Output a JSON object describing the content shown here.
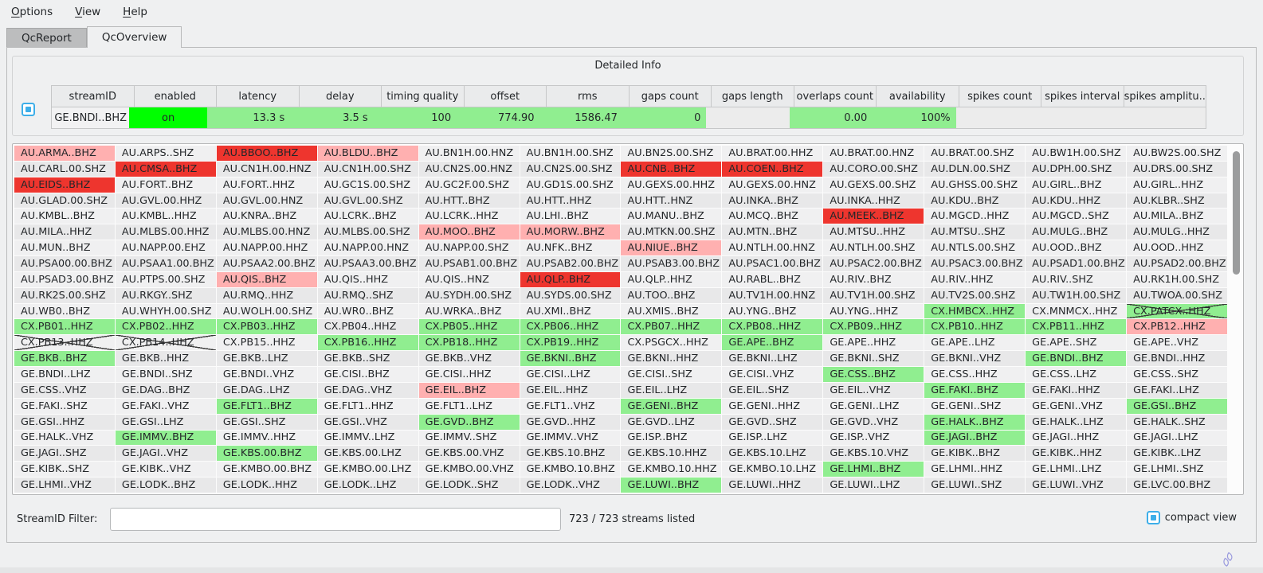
{
  "menu_bar": {
    "items": [
      {
        "label": "Options",
        "mnemonic": "O"
      },
      {
        "label": "View",
        "mnemonic": "V"
      },
      {
        "label": "Help",
        "mnemonic": "H"
      }
    ]
  },
  "tabs": [
    {
      "label": "QcReport",
      "active": false
    },
    {
      "label": "QcOverview",
      "active": true
    }
  ],
  "detailed_info": {
    "title": "Detailed Info",
    "columns": [
      "streamID",
      "enabled",
      "latency",
      "delay",
      "timing quality",
      "offset",
      "rms",
      "gaps count",
      "gaps length",
      "overlaps count",
      "availability",
      "spikes count",
      "spikes interval",
      "spikes amplitu.."
    ],
    "row": [
      [
        "GE.BNDI..BHZ",
        "id"
      ],
      [
        "on",
        "on"
      ],
      [
        "13.3 s",
        "lg"
      ],
      [
        "3.5 s",
        "lg"
      ],
      [
        "100",
        "lg"
      ],
      [
        "774.90",
        "lg"
      ],
      [
        "1586.47",
        "lg"
      ],
      [
        "0",
        "lg"
      ],
      [
        "",
        ""
      ],
      [
        "0.00",
        "lg"
      ],
      [
        "100%",
        "lg"
      ],
      [
        "",
        ""
      ],
      [
        "",
        ""
      ],
      [
        "",
        ""
      ]
    ]
  },
  "grid": {
    "state_legend": {
      "": "normal",
      "p": "warn-pink",
      "r": "alert-red",
      "g": "ok-green",
      "x": "disabled-crossed",
      "gx": "ok-green-crossed"
    },
    "rows": [
      [
        [
          "AU.ARMA..BHZ",
          "p"
        ],
        [
          "AU.ARPS..SHZ",
          ""
        ],
        [
          "AU.BBOO..BHZ",
          "r"
        ],
        [
          "AU.BLDU..BHZ",
          "p"
        ],
        [
          "AU.BN1H.00.HNZ",
          ""
        ],
        [
          "AU.BN1H.00.SHZ",
          ""
        ],
        [
          "AU.BN2S.00.SHZ",
          ""
        ],
        [
          "AU.BRAT.00.HHZ",
          ""
        ],
        [
          "AU.BRAT.00.HNZ",
          ""
        ],
        [
          "AU.BRAT.00.SHZ",
          ""
        ],
        [
          "AU.BW1H.00.SHZ",
          ""
        ],
        [
          "AU.BW2S.00.SHZ",
          ""
        ]
      ],
      [
        [
          "AU.CARL.00.SHZ",
          ""
        ],
        [
          "AU.CMSA..BHZ",
          "r"
        ],
        [
          "AU.CN1H.00.HNZ",
          ""
        ],
        [
          "AU.CN1H.00.SHZ",
          ""
        ],
        [
          "AU.CN2S.00.HNZ",
          ""
        ],
        [
          "AU.CN2S.00.SHZ",
          ""
        ],
        [
          "AU.CNB..BHZ",
          "r"
        ],
        [
          "AU.COEN..BHZ",
          "r"
        ],
        [
          "AU.CORO.00.SHZ",
          ""
        ],
        [
          "AU.DLN.00.SHZ",
          ""
        ],
        [
          "AU.DPH.00.SHZ",
          ""
        ],
        [
          "AU.DRS.00.SHZ",
          ""
        ]
      ],
      [
        [
          "AU.EIDS..BHZ",
          "r"
        ],
        [
          "AU.FORT..BHZ",
          ""
        ],
        [
          "AU.FORT..HHZ",
          ""
        ],
        [
          "AU.GC1S.00.SHZ",
          ""
        ],
        [
          "AU.GC2F.00.SHZ",
          ""
        ],
        [
          "AU.GD1S.00.SHZ",
          ""
        ],
        [
          "AU.GEXS.00.HHZ",
          ""
        ],
        [
          "AU.GEXS.00.HNZ",
          ""
        ],
        [
          "AU.GEXS.00.SHZ",
          ""
        ],
        [
          "AU.GHSS.00.SHZ",
          ""
        ],
        [
          "AU.GIRL..BHZ",
          ""
        ],
        [
          "AU.GIRL..HHZ",
          ""
        ]
      ],
      [
        [
          "AU.GLAD.00.SHZ",
          ""
        ],
        [
          "AU.GVL.00.HHZ",
          ""
        ],
        [
          "AU.GVL.00.HNZ",
          ""
        ],
        [
          "AU.GVL.00.SHZ",
          ""
        ],
        [
          "AU.HTT..BHZ",
          ""
        ],
        [
          "AU.HTT..HHZ",
          ""
        ],
        [
          "AU.HTT..HNZ",
          ""
        ],
        [
          "AU.INKA..BHZ",
          ""
        ],
        [
          "AU.INKA..HHZ",
          ""
        ],
        [
          "AU.KDU..BHZ",
          ""
        ],
        [
          "AU.KDU..HHZ",
          ""
        ],
        [
          "AU.KLBR..SHZ",
          ""
        ]
      ],
      [
        [
          "AU.KMBL..BHZ",
          ""
        ],
        [
          "AU.KMBL..HHZ",
          ""
        ],
        [
          "AU.KNRA..BHZ",
          ""
        ],
        [
          "AU.LCRK..BHZ",
          ""
        ],
        [
          "AU.LCRK..HHZ",
          ""
        ],
        [
          "AU.LHI..BHZ",
          ""
        ],
        [
          "AU.MANU..BHZ",
          ""
        ],
        [
          "AU.MCQ..BHZ",
          ""
        ],
        [
          "AU.MEEK..BHZ",
          "r"
        ],
        [
          "AU.MGCD..HHZ",
          ""
        ],
        [
          "AU.MGCD..SHZ",
          ""
        ],
        [
          "AU.MILA..BHZ",
          ""
        ]
      ],
      [
        [
          "AU.MILA..HHZ",
          ""
        ],
        [
          "AU.MLBS.00.HHZ",
          ""
        ],
        [
          "AU.MLBS.00.HNZ",
          ""
        ],
        [
          "AU.MLBS.00.SHZ",
          ""
        ],
        [
          "AU.MOO..BHZ",
          "p"
        ],
        [
          "AU.MORW..BHZ",
          "p"
        ],
        [
          "AU.MTKN.00.SHZ",
          ""
        ],
        [
          "AU.MTN..BHZ",
          ""
        ],
        [
          "AU.MTSU..HHZ",
          ""
        ],
        [
          "AU.MTSU..SHZ",
          ""
        ],
        [
          "AU.MULG..BHZ",
          ""
        ],
        [
          "AU.MULG..HHZ",
          ""
        ]
      ],
      [
        [
          "AU.MUN..BHZ",
          ""
        ],
        [
          "AU.NAPP.00.EHZ",
          ""
        ],
        [
          "AU.NAPP.00.HHZ",
          ""
        ],
        [
          "AU.NAPP.00.HNZ",
          ""
        ],
        [
          "AU.NAPP.00.SHZ",
          ""
        ],
        [
          "AU.NFK..BHZ",
          ""
        ],
        [
          "AU.NIUE..BHZ",
          "p"
        ],
        [
          "AU.NTLH.00.HNZ",
          ""
        ],
        [
          "AU.NTLH.00.SHZ",
          ""
        ],
        [
          "AU.NTLS.00.SHZ",
          ""
        ],
        [
          "AU.OOD..BHZ",
          ""
        ],
        [
          "AU.OOD..HHZ",
          ""
        ]
      ],
      [
        [
          "AU.PSA00.00.BHZ",
          ""
        ],
        [
          "AU.PSAA1.00.BHZ",
          ""
        ],
        [
          "AU.PSAA2.00.BHZ",
          ""
        ],
        [
          "AU.PSAA3.00.BHZ",
          ""
        ],
        [
          "AU.PSAB1.00.BHZ",
          ""
        ],
        [
          "AU.PSAB2.00.BHZ",
          ""
        ],
        [
          "AU.PSAB3.00.BHZ",
          ""
        ],
        [
          "AU.PSAC1.00.BHZ",
          ""
        ],
        [
          "AU.PSAC2.00.BHZ",
          ""
        ],
        [
          "AU.PSAC3.00.BHZ",
          ""
        ],
        [
          "AU.PSAD1.00.BHZ",
          ""
        ],
        [
          "AU.PSAD2.00.BHZ",
          ""
        ]
      ],
      [
        [
          "AU.PSAD3.00.BHZ",
          ""
        ],
        [
          "AU.PTPS.00.SHZ",
          ""
        ],
        [
          "AU.QIS..BHZ",
          "p"
        ],
        [
          "AU.QIS..HHZ",
          ""
        ],
        [
          "AU.QIS..HNZ",
          ""
        ],
        [
          "AU.QLP..BHZ",
          "r"
        ],
        [
          "AU.QLP..HHZ",
          ""
        ],
        [
          "AU.RABL..BHZ",
          ""
        ],
        [
          "AU.RIV..BHZ",
          ""
        ],
        [
          "AU.RIV..HHZ",
          ""
        ],
        [
          "AU.RIV..SHZ",
          ""
        ],
        [
          "AU.RK1H.00.SHZ",
          ""
        ]
      ],
      [
        [
          "AU.RK2S.00.SHZ",
          ""
        ],
        [
          "AU.RKGY..SHZ",
          ""
        ],
        [
          "AU.RMQ..HHZ",
          ""
        ],
        [
          "AU.RMQ..SHZ",
          ""
        ],
        [
          "AU.SYDH.00.SHZ",
          ""
        ],
        [
          "AU.SYDS.00.SHZ",
          ""
        ],
        [
          "AU.TOO..BHZ",
          ""
        ],
        [
          "AU.TV1H.00.HNZ",
          ""
        ],
        [
          "AU.TV1H.00.SHZ",
          ""
        ],
        [
          "AU.TV2S.00.SHZ",
          ""
        ],
        [
          "AU.TW1H.00.SHZ",
          ""
        ],
        [
          "AU.TWOA.00.SHZ",
          ""
        ]
      ],
      [
        [
          "AU.WB0..BHZ",
          ""
        ],
        [
          "AU.WHYH.00.SHZ",
          ""
        ],
        [
          "AU.WOLH.00.SHZ",
          ""
        ],
        [
          "AU.WR0..BHZ",
          ""
        ],
        [
          "AU.WRKA..BHZ",
          ""
        ],
        [
          "AU.XMI..BHZ",
          ""
        ],
        [
          "AU.XMIS..BHZ",
          ""
        ],
        [
          "AU.YNG..BHZ",
          ""
        ],
        [
          "AU.YNG..HHZ",
          ""
        ],
        [
          "CX.HMBCX..HHZ",
          "g"
        ],
        [
          "CX.MNMCX..HHZ",
          ""
        ],
        [
          "CX.PATCX..HHZ",
          "gx"
        ]
      ],
      [
        [
          "CX.PB01..HHZ",
          "g"
        ],
        [
          "CX.PB02..HHZ",
          "g"
        ],
        [
          "CX.PB03..HHZ",
          "g"
        ],
        [
          "CX.PB04..HHZ",
          ""
        ],
        [
          "CX.PB05..HHZ",
          "g"
        ],
        [
          "CX.PB06..HHZ",
          "g"
        ],
        [
          "CX.PB07..HHZ",
          "g"
        ],
        [
          "CX.PB08..HHZ",
          "g"
        ],
        [
          "CX.PB09..HHZ",
          "g"
        ],
        [
          "CX.PB10..HHZ",
          "g"
        ],
        [
          "CX.PB11..HHZ",
          "g"
        ],
        [
          "CX.PB12..HHZ",
          "p"
        ]
      ],
      [
        [
          "CX.PB13..HHZ",
          "x"
        ],
        [
          "CX.PB14..HHZ",
          "x"
        ],
        [
          "CX.PB15..HHZ",
          ""
        ],
        [
          "CX.PB16..HHZ",
          "g"
        ],
        [
          "CX.PB18..HHZ",
          "g"
        ],
        [
          "CX.PB19..HHZ",
          "g"
        ],
        [
          "CX.PSGCX..HHZ",
          ""
        ],
        [
          "GE.APE..BHZ",
          "g"
        ],
        [
          "GE.APE..HHZ",
          ""
        ],
        [
          "GE.APE..LHZ",
          ""
        ],
        [
          "GE.APE..SHZ",
          ""
        ],
        [
          "GE.APE..VHZ",
          ""
        ]
      ],
      [
        [
          "GE.BKB..BHZ",
          "g"
        ],
        [
          "GE.BKB..HHZ",
          ""
        ],
        [
          "GE.BKB..LHZ",
          ""
        ],
        [
          "GE.BKB..SHZ",
          ""
        ],
        [
          "GE.BKB..VHZ",
          ""
        ],
        [
          "GE.BKNI..BHZ",
          "g"
        ],
        [
          "GE.BKNI..HHZ",
          ""
        ],
        [
          "GE.BKNI..LHZ",
          ""
        ],
        [
          "GE.BKNI..SHZ",
          ""
        ],
        [
          "GE.BKNI..VHZ",
          ""
        ],
        [
          "GE.BNDI..BHZ",
          "g"
        ],
        [
          "GE.BNDI..HHZ",
          ""
        ]
      ],
      [
        [
          "GE.BNDI..LHZ",
          ""
        ],
        [
          "GE.BNDI..SHZ",
          ""
        ],
        [
          "GE.BNDI..VHZ",
          ""
        ],
        [
          "GE.CISI..BHZ",
          ""
        ],
        [
          "GE.CISI..HHZ",
          ""
        ],
        [
          "GE.CISI..LHZ",
          ""
        ],
        [
          "GE.CISI..SHZ",
          ""
        ],
        [
          "GE.CISI..VHZ",
          ""
        ],
        [
          "GE.CSS..BHZ",
          "g"
        ],
        [
          "GE.CSS..HHZ",
          ""
        ],
        [
          "GE.CSS..LHZ",
          ""
        ],
        [
          "GE.CSS..SHZ",
          ""
        ]
      ],
      [
        [
          "GE.CSS..VHZ",
          ""
        ],
        [
          "GE.DAG..BHZ",
          ""
        ],
        [
          "GE.DAG..LHZ",
          ""
        ],
        [
          "GE.DAG..VHZ",
          ""
        ],
        [
          "GE.EIL..BHZ",
          "p"
        ],
        [
          "GE.EIL..HHZ",
          ""
        ],
        [
          "GE.EIL..LHZ",
          ""
        ],
        [
          "GE.EIL..SHZ",
          ""
        ],
        [
          "GE.EIL..VHZ",
          ""
        ],
        [
          "GE.FAKI..BHZ",
          "g"
        ],
        [
          "GE.FAKI..HHZ",
          ""
        ],
        [
          "GE.FAKI..LHZ",
          ""
        ]
      ],
      [
        [
          "GE.FAKI..SHZ",
          ""
        ],
        [
          "GE.FAKI..VHZ",
          ""
        ],
        [
          "GE.FLT1..BHZ",
          "g"
        ],
        [
          "GE.FLT1..HHZ",
          ""
        ],
        [
          "GE.FLT1..LHZ",
          ""
        ],
        [
          "GE.FLT1..VHZ",
          ""
        ],
        [
          "GE.GENI..BHZ",
          "g"
        ],
        [
          "GE.GENI..HHZ",
          ""
        ],
        [
          "GE.GENI..LHZ",
          ""
        ],
        [
          "GE.GENI..SHZ",
          ""
        ],
        [
          "GE.GENI..VHZ",
          ""
        ],
        [
          "GE.GSI..BHZ",
          "g"
        ]
      ],
      [
        [
          "GE.GSI..HHZ",
          ""
        ],
        [
          "GE.GSI..LHZ",
          ""
        ],
        [
          "GE.GSI..SHZ",
          ""
        ],
        [
          "GE.GSI..VHZ",
          ""
        ],
        [
          "GE.GVD..BHZ",
          "g"
        ],
        [
          "GE.GVD..HHZ",
          ""
        ],
        [
          "GE.GVD..LHZ",
          ""
        ],
        [
          "GE.GVD..SHZ",
          ""
        ],
        [
          "GE.GVD..VHZ",
          ""
        ],
        [
          "GE.HALK..BHZ",
          "g"
        ],
        [
          "GE.HALK..LHZ",
          ""
        ],
        [
          "GE.HALK..SHZ",
          ""
        ]
      ],
      [
        [
          "GE.HALK..VHZ",
          ""
        ],
        [
          "GE.IMMV..BHZ",
          "g"
        ],
        [
          "GE.IMMV..HHZ",
          ""
        ],
        [
          "GE.IMMV..LHZ",
          ""
        ],
        [
          "GE.IMMV..SHZ",
          ""
        ],
        [
          "GE.IMMV..VHZ",
          ""
        ],
        [
          "GE.ISP..BHZ",
          ""
        ],
        [
          "GE.ISP..LHZ",
          ""
        ],
        [
          "GE.ISP..VHZ",
          ""
        ],
        [
          "GE.JAGI..BHZ",
          "g"
        ],
        [
          "GE.JAGI..HHZ",
          ""
        ],
        [
          "GE.JAGI..LHZ",
          ""
        ]
      ],
      [
        [
          "GE.JAGI..SHZ",
          ""
        ],
        [
          "GE.JAGI..VHZ",
          ""
        ],
        [
          "GE.KBS.00.BHZ",
          "g"
        ],
        [
          "GE.KBS.00.LHZ",
          ""
        ],
        [
          "GE.KBS.00.VHZ",
          ""
        ],
        [
          "GE.KBS.10.BHZ",
          ""
        ],
        [
          "GE.KBS.10.HHZ",
          ""
        ],
        [
          "GE.KBS.10.LHZ",
          ""
        ],
        [
          "GE.KBS.10.VHZ",
          ""
        ],
        [
          "GE.KIBK..BHZ",
          ""
        ],
        [
          "GE.KIBK..HHZ",
          ""
        ],
        [
          "GE.KIBK..LHZ",
          ""
        ]
      ],
      [
        [
          "GE.KIBK..SHZ",
          ""
        ],
        [
          "GE.KIBK..VHZ",
          ""
        ],
        [
          "GE.KMBO.00.BHZ",
          ""
        ],
        [
          "GE.KMBO.00.LHZ",
          ""
        ],
        [
          "GE.KMBO.00.VHZ",
          ""
        ],
        [
          "GE.KMBO.10.BHZ",
          ""
        ],
        [
          "GE.KMBO.10.HHZ",
          ""
        ],
        [
          "GE.KMBO.10.LHZ",
          ""
        ],
        [
          "GE.LHMI..BHZ",
          "g"
        ],
        [
          "GE.LHMI..HHZ",
          ""
        ],
        [
          "GE.LHMI..LHZ",
          ""
        ],
        [
          "GE.LHMI..SHZ",
          ""
        ]
      ],
      [
        [
          "GE.LHMI..VHZ",
          ""
        ],
        [
          "GE.LODK..BHZ",
          ""
        ],
        [
          "GE.LODK..HHZ",
          ""
        ],
        [
          "GE.LODK..LHZ",
          ""
        ],
        [
          "GE.LODK..SHZ",
          ""
        ],
        [
          "GE.LODK..VHZ",
          ""
        ],
        [
          "GE.LUWI..BHZ",
          "g"
        ],
        [
          "GE.LUWI..HHZ",
          ""
        ],
        [
          "GE.LUWI..LHZ",
          ""
        ],
        [
          "GE.LUWI..SHZ",
          ""
        ],
        [
          "GE.LUWI..VHZ",
          ""
        ],
        [
          "GE.LVC.00.BHZ",
          ""
        ]
      ]
    ]
  },
  "footer": {
    "filter_label": "StreamID Filter:",
    "filter_value": "",
    "streams_count": "723 / 723 streams listed",
    "compact_view_label": "compact view"
  },
  "colors": {
    "window_bg": "#eff0f1",
    "ok_green": "#90ee90",
    "alert_red": "#ee352e",
    "warn_pink": "#ffb0b0",
    "enabled_green": "#00ff00",
    "accent_blue": "#3daee9"
  }
}
